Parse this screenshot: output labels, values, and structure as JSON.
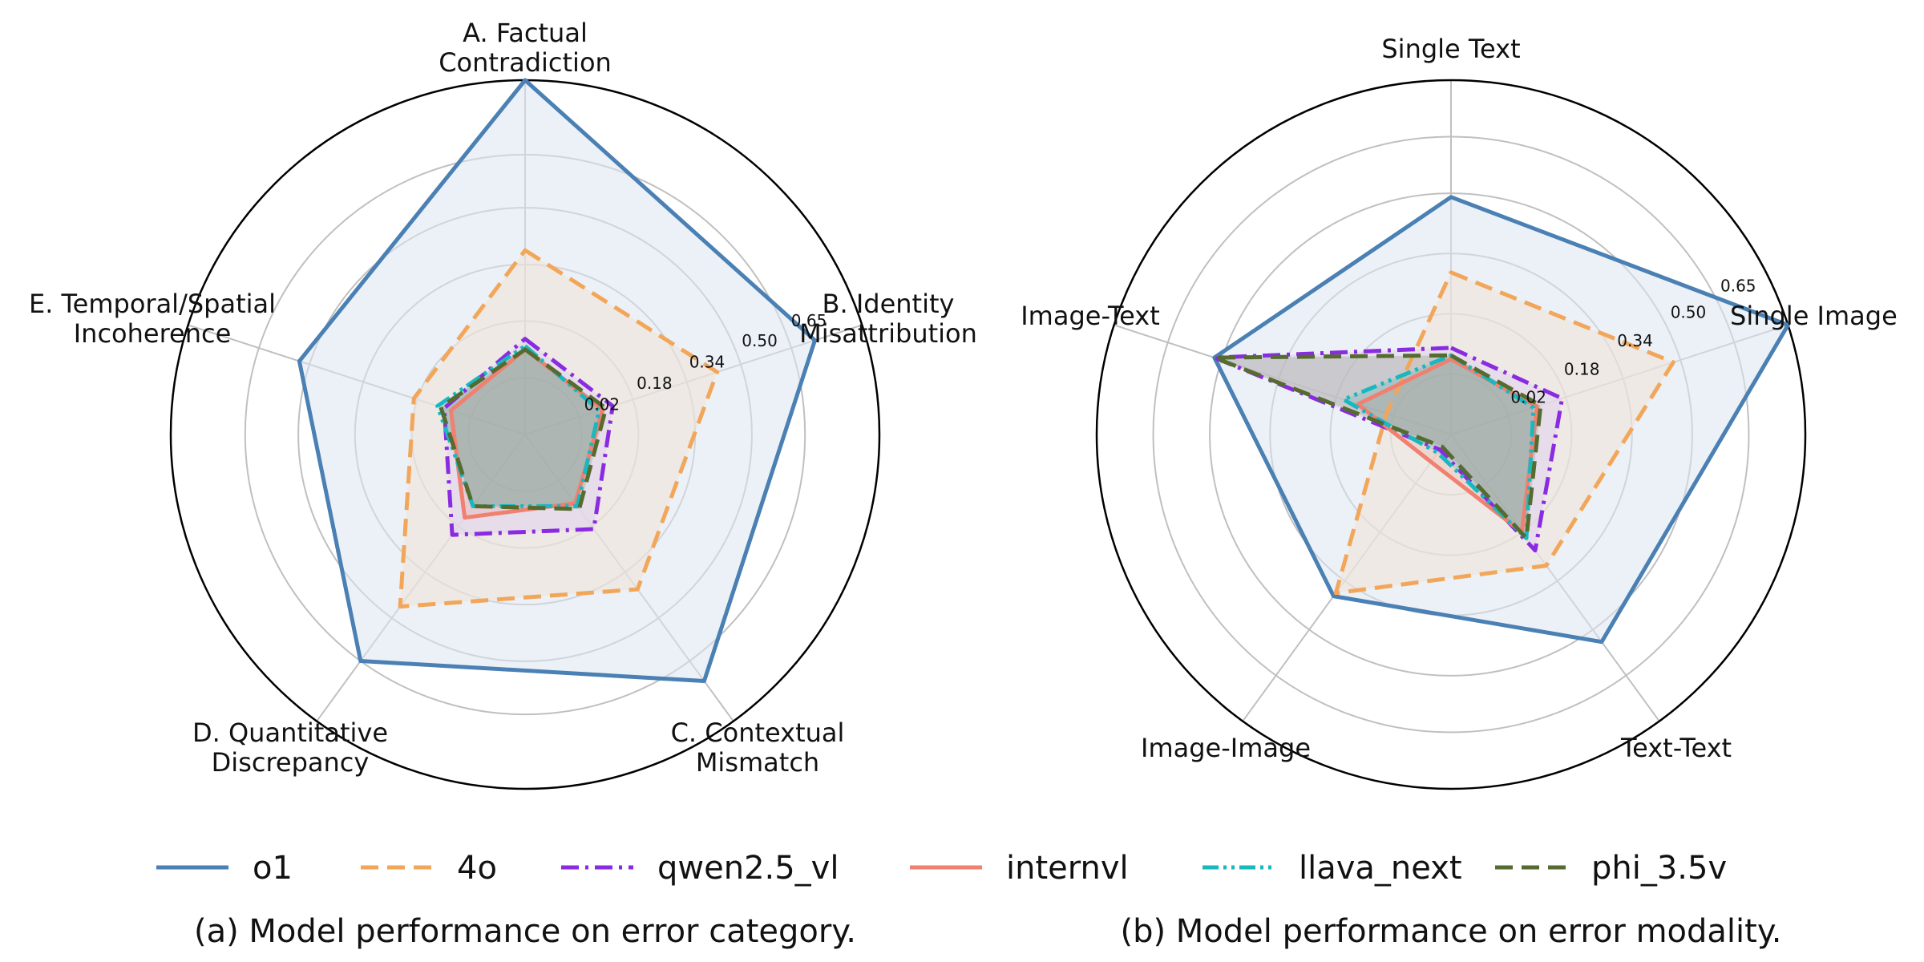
{
  "chart_data": [
    {
      "type": "radar",
      "caption": "(a) Model performance on error category.",
      "axes": [
        "A. Factual\nContradiction",
        "B. Identity\nMisattribution",
        "C. Contextual\nMismatch",
        "D. Quantitative\nDiscrepancy",
        "E. Temporal/Spatial\nIncoherence"
      ],
      "r_ticks": [
        "0.02",
        "0.18",
        "0.34",
        "0.50",
        "0.65"
      ],
      "r_range": [
        -0.14,
        0.86
      ],
      "series": [
        {
          "name": "o1",
          "values": [
            0.86,
            0.72,
            0.72,
            0.65,
            0.53
          ]
        },
        {
          "name": "4o",
          "values": [
            0.38,
            0.43,
            0.4,
            0.46,
            0.19
          ]
        },
        {
          "name": "qwen2.5_vl",
          "values": [
            0.13,
            0.12,
            0.19,
            0.21,
            0.1
          ]
        },
        {
          "name": "internvl",
          "values": [
            0.1,
            0.09,
            0.1,
            0.15,
            0.08
          ]
        },
        {
          "name": "llava_next",
          "values": [
            0.11,
            0.08,
            0.11,
            0.11,
            0.12
          ]
        },
        {
          "name": "phi_3.5v",
          "values": [
            0.1,
            0.1,
            0.12,
            0.11,
            0.11
          ]
        }
      ]
    },
    {
      "type": "radar",
      "caption": "(b) Model performance on error modality.",
      "axes": [
        "Single Text",
        "Single Image",
        "Text-Text",
        "Image-Image",
        "Image-Text"
      ],
      "r_ticks": [
        "0.02",
        "0.18",
        "0.34",
        "0.50",
        "0.65"
      ],
      "r_range": [
        -0.14,
        0.8
      ],
      "series": [
        {
          "name": "o1",
          "values": [
            0.49,
            0.8,
            0.54,
            0.39,
            0.52
          ]
        },
        {
          "name": "4o",
          "values": [
            0.29,
            0.48,
            0.29,
            0.38,
            0.04
          ]
        },
        {
          "name": "qwen2.5_vl",
          "values": [
            0.09,
            0.17,
            0.24,
            -0.09,
            0.52
          ]
        },
        {
          "name": "internvl",
          "values": [
            0.06,
            0.1,
            0.18,
            -0.05,
            0.12
          ]
        },
        {
          "name": "llava_next",
          "values": [
            0.07,
            0.09,
            0.2,
            -0.08,
            0.16
          ]
        },
        {
          "name": "phi_3.5v",
          "values": [
            0.07,
            0.11,
            0.2,
            -0.1,
            0.52
          ]
        }
      ]
    }
  ],
  "legend": [
    {
      "name": "o1",
      "color": "#4a80b3",
      "dash": "solid"
    },
    {
      "name": "4o",
      "color": "#f2a65a",
      "dash": "dashed"
    },
    {
      "name": "qwen2.5_vl",
      "color": "#8a2be2",
      "dash": "dashdot"
    },
    {
      "name": "internvl",
      "color": "#f08070",
      "dash": "solid"
    },
    {
      "name": "llava_next",
      "color": "#18b8c0",
      "dash": "dashdotdot"
    },
    {
      "name": "phi_3.5v",
      "color": "#556b2f",
      "dash": "dashed"
    }
  ],
  "fill_colors": {
    "o1": "#dce6f1",
    "4o": "#f0e2d6",
    "qwen2.5_vl": "#e0d2ef"
  }
}
